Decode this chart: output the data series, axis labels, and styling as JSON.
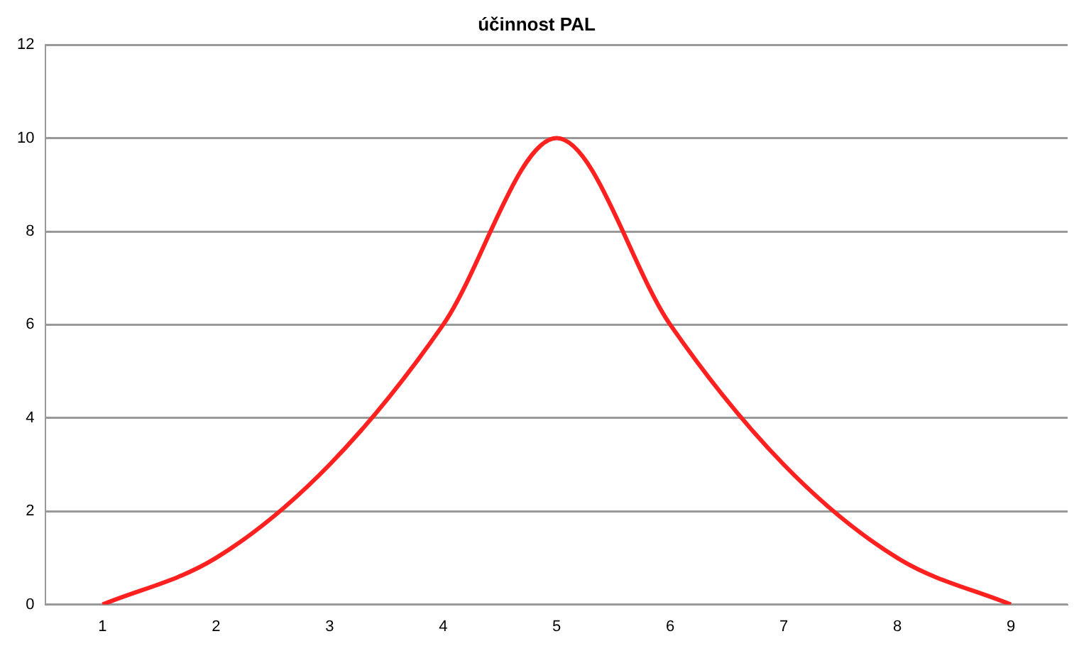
{
  "chart_data": {
    "type": "line",
    "title": "účinnost PAL",
    "categories": [
      "1",
      "2",
      "3",
      "4",
      "5",
      "6",
      "7",
      "8",
      "9"
    ],
    "series": [
      {
        "color": "#ff2020",
        "values": [
          0,
          1,
          3,
          6,
          10,
          6,
          3,
          1,
          0
        ]
      }
    ],
    "ylim": [
      0,
      12
    ],
    "yticks": [
      0,
      2,
      4,
      6,
      8,
      10,
      12
    ],
    "grid": "y",
    "legend": false,
    "marker": "none",
    "line_style": "solid"
  }
}
